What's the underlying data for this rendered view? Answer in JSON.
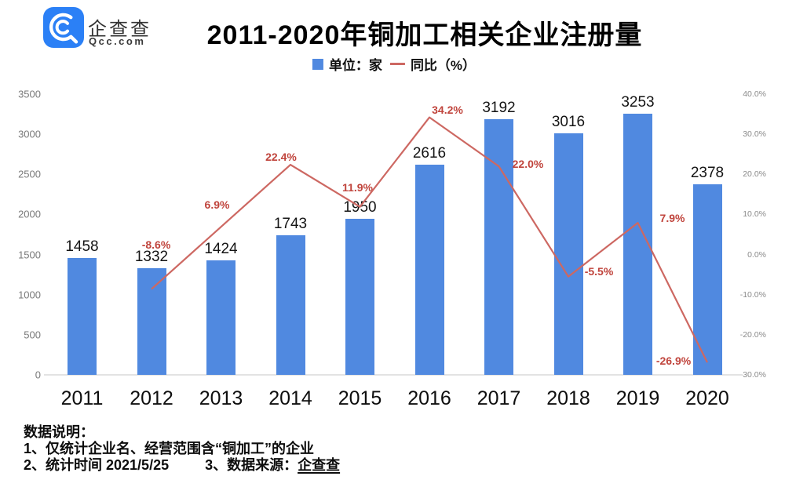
{
  "logo": {
    "name": "企查查",
    "domain": "Qcc.com"
  },
  "title": "2011-2020年铜加工相关企业注册量",
  "legend": {
    "bar_label": "单位：家",
    "line_label": "同比（%）",
    "bar_color": "#5089E0",
    "line_color": "#CD6862"
  },
  "chart_data": {
    "type": "bar",
    "title": "2011-2020年铜加工相关企业注册量",
    "categories": [
      "2011",
      "2012",
      "2013",
      "2014",
      "2015",
      "2016",
      "2017",
      "2018",
      "2019",
      "2020"
    ],
    "series": [
      {
        "name": "单位：家",
        "type": "bar",
        "axis": "left",
        "color": "#5089E0",
        "values": [
          1458,
          1332,
          1424,
          1743,
          1950,
          2616,
          3192,
          3016,
          3253,
          2378
        ]
      },
      {
        "name": "同比（%）",
        "type": "line",
        "axis": "right",
        "color": "#CD6862",
        "values": [
          null,
          -8.6,
          6.9,
          22.4,
          11.9,
          34.2,
          22.0,
          -5.5,
          7.9,
          -26.9
        ],
        "point_labels": [
          "",
          "-8.6%",
          "6.9%",
          "22.4%",
          "11.9%",
          "34.2%",
          "22.0%",
          "-5.5%",
          "7.9%",
          "-26.9%"
        ]
      }
    ],
    "left_axis": {
      "min": 0,
      "max": 3500,
      "ticks": [
        "0",
        "500",
        "1000",
        "1500",
        "2000",
        "2500",
        "3000",
        "3500"
      ]
    },
    "right_axis": {
      "min": -30,
      "max": 40,
      "ticks": [
        "-30.0%",
        "-20.0%",
        "-10.0%",
        "0.0%",
        "10.0%",
        "20.0%",
        "30.0%",
        "40.0%"
      ]
    },
    "grid": false,
    "legend_position": "top"
  },
  "notes": {
    "heading": "数据说明：",
    "line1": "1、仅统计企业名、经营范围含“铜加工”的企业",
    "line2": "2、统计时间 2021/5/25",
    "line3_label": "3、数据来源：",
    "line3_source": "企查查"
  }
}
